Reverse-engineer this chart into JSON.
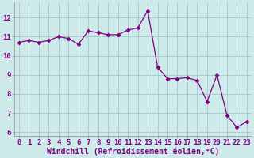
{
  "x": [
    0,
    1,
    2,
    3,
    4,
    5,
    6,
    7,
    8,
    9,
    10,
    11,
    12,
    13,
    14,
    15,
    16,
    17,
    18,
    19,
    20,
    21,
    22,
    23
  ],
  "y": [
    10.7,
    10.8,
    10.7,
    10.8,
    11.0,
    10.9,
    10.6,
    11.3,
    11.2,
    11.1,
    11.1,
    11.35,
    11.45,
    12.35,
    9.4,
    8.8,
    8.8,
    8.85,
    8.7,
    7.6,
    9.0,
    6.9,
    6.25,
    6.55
  ],
  "line_color": "#800080",
  "marker": "D",
  "marker_size": 2.5,
  "bg_color": "#ceeaea",
  "grid_color": "#aacccc",
  "xlabel": "Windchill (Refroidissement éolien,°C)",
  "xlim": [
    -0.5,
    23.5
  ],
  "ylim": [
    5.8,
    12.8
  ],
  "yticks": [
    6,
    7,
    8,
    9,
    10,
    11,
    12
  ],
  "xticks": [
    0,
    1,
    2,
    3,
    4,
    5,
    6,
    7,
    8,
    9,
    10,
    11,
    12,
    13,
    14,
    15,
    16,
    17,
    18,
    19,
    20,
    21,
    22,
    23
  ],
  "tick_label_size": 6.5,
  "xlabel_size": 7,
  "spine_color": "#999999",
  "label_color": "#800080"
}
